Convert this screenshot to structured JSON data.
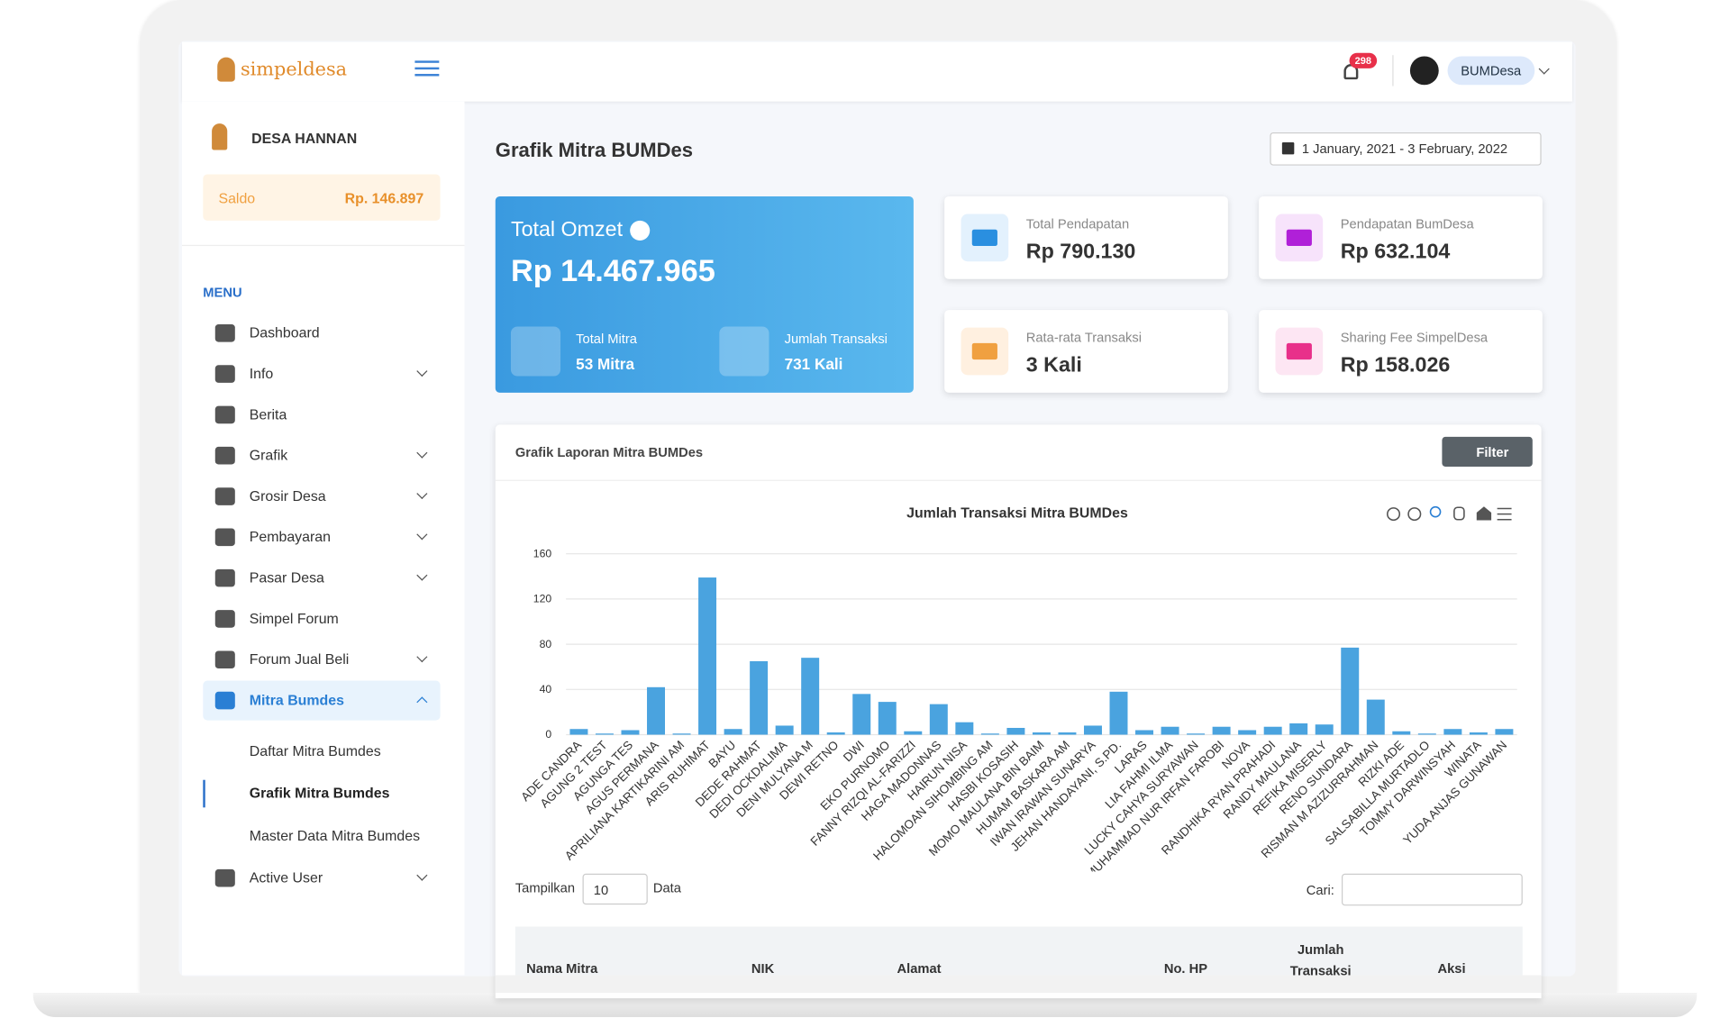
{
  "header": {
    "logo": "simpeldesa",
    "notifications": "298",
    "user": "BUMDesa"
  },
  "sidebar": {
    "village": "DESA HANNAN",
    "balance_label": "Saldo",
    "balance": "Rp. 146.897",
    "menu_title": "MENU",
    "menu": [
      "Dashboard",
      "Info",
      "Berita",
      "Grafik",
      "Grosir Desa",
      "Pembayaran",
      "Pasar Desa",
      "Simpel Forum",
      "Forum Jual Beli",
      "Mitra Bumdes"
    ],
    "submenu": [
      "Daftar Mitra Bumdes",
      "Grafik Mitra Bumdes",
      "Master Data Mitra Bumdes"
    ],
    "last_menu": "Active User"
  },
  "page": {
    "title": "Grafik Mitra BUMDes",
    "date_range": "1 January, 2021 - 3 February, 2022"
  },
  "omzet": {
    "label": "Total Omzet",
    "value": "Rp 14.467.965",
    "mitra_label": "Total Mitra",
    "mitra": "53 Mitra",
    "trx_label": "Jumlah Transaksi",
    "trx": "731 Kali"
  },
  "stats": [
    {
      "label": "Total Pendapatan",
      "value": "Rp 790.130"
    },
    {
      "label": "Pendapatan BumDesa",
      "value": "Rp 632.104"
    },
    {
      "label": "Rata-rata Transaksi",
      "value": "3 Kali"
    },
    {
      "label": "Sharing Fee SimpelDesa",
      "value": "Rp 158.026"
    }
  ],
  "panel": {
    "title": "Grafik Laporan Mitra BUMDes",
    "filter": "Filter"
  },
  "chart_data": {
    "type": "bar",
    "title": "Jumlah Transaksi Mitra BUMDes",
    "categories": [
      "ADE CANDRA",
      "AGUNG 2 TEST",
      "AGUNGA TES",
      "AGUS PERMANA",
      "APRILIANA KARTIKARINI AM",
      "ARIS RUHIMAT",
      "BAYU",
      "DEDE RAHMAT",
      "DEDI OCKDALIMA",
      "DENI MULYANA M",
      "DEWI RETNO",
      "DWI",
      "EKO PURNOMO",
      "FANNY RIZQI AL-FARIZZI",
      "HAGA MADONNAS",
      "HAIRUN NISA",
      "HALOMOAN SIHOMBING AM",
      "HASBI KOSASIH",
      "MOMO MAULANA BIN BAIM",
      "HUMAM BASKARA AM",
      "IWAN IRAWAN SUNARYA",
      "JEHAN HANDAYANI, S.PD.",
      "LARAS",
      "LIA FAHMI ILMA",
      "LUCKY CAHYA SURYAWAN",
      "MUHAMMAD NUR IRFAN FAROBI",
      "NOVA",
      "RANDHIKA RYAN PRAHADI",
      "RANDY MAULANA",
      "REFIKA MISERLY",
      "RENO SUNDARA",
      "RISMAN M AZIZURRAHMAN",
      "RIZKI ADE",
      "SALSABILLA MURTADLO",
      "TOMMY DARWINSYAH",
      "WINATA",
      "YUDA ANJAS GUNAWAN"
    ],
    "values": [
      5,
      1,
      4,
      42,
      1,
      139,
      5,
      65,
      8,
      68,
      2,
      36,
      29,
      3,
      27,
      11,
      1,
      6,
      2,
      2,
      8,
      38,
      4,
      7,
      1,
      7,
      4,
      7,
      10,
      9,
      77,
      31,
      3,
      1,
      5,
      2,
      5
    ],
    "color": "#4aa3df",
    "ylim": [
      0,
      160
    ],
    "yticks": [
      0,
      40,
      80,
      120,
      160
    ],
    "grid": true
  },
  "table": {
    "show_label": "Tampilkan",
    "page_size": "10",
    "show_suffix": "Data",
    "search_label": "Cari:",
    "columns": [
      "Nama Mitra",
      "NIK",
      "Alamat",
      "No. HP",
      "Jumlah Transaksi",
      "Aksi"
    ]
  }
}
